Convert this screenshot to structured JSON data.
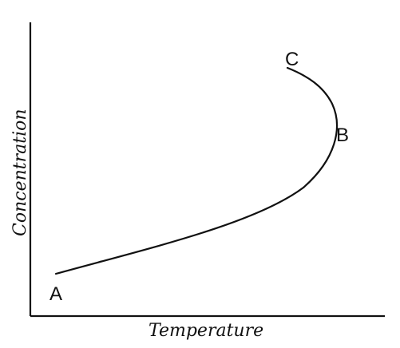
{
  "diagram": {
    "x_axis_label": "Temperature",
    "y_axis_label": "Concentration",
    "points": {
      "a": "A",
      "b": "B",
      "c": "C"
    }
  }
}
